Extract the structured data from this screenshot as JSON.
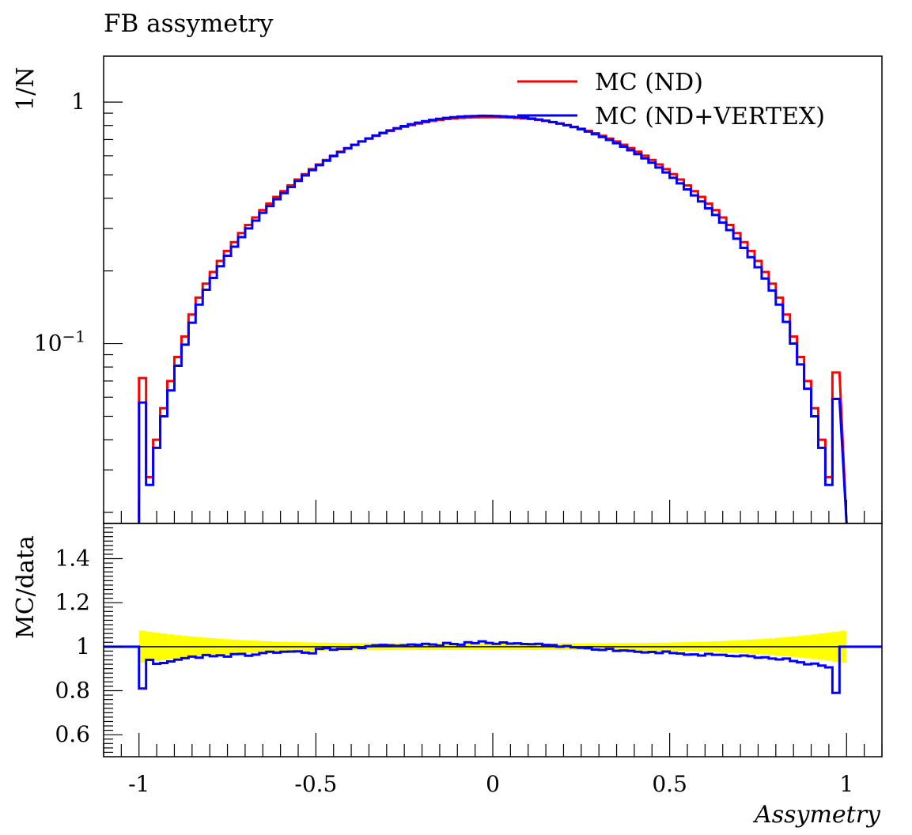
{
  "chart_data": [
    {
      "type": "line",
      "title": "FB assymetry",
      "ylabel": "1/N",
      "yscale": "log",
      "ylim": [
        0.018,
        1.55
      ],
      "xlim": [
        -1.1,
        1.1
      ],
      "ytick_labels": [
        "1",
        "10^{-1}"
      ],
      "legend_position": "top-right",
      "legend": [
        "MC (ND)",
        "MC (ND+VERTEX)"
      ],
      "bins": {
        "start": -1.0,
        "end": 1.0,
        "count": 100
      },
      "series": [
        {
          "name": "MC (ND)",
          "color": "#ff0000",
          "values": [
            0.072,
            0.028,
            0.04,
            0.054,
            0.07,
            0.088,
            0.107,
            0.132,
            0.155,
            0.177,
            0.198,
            0.22,
            0.242,
            0.263,
            0.287,
            0.31,
            0.333,
            0.357,
            0.38,
            0.405,
            0.428,
            0.452,
            0.478,
            0.503,
            0.528,
            0.552,
            0.576,
            0.6,
            0.623,
            0.645,
            0.666,
            0.687,
            0.706,
            0.725,
            0.743,
            0.76,
            0.776,
            0.79,
            0.803,
            0.815,
            0.826,
            0.836,
            0.844,
            0.851,
            0.856,
            0.86,
            0.863,
            0.865,
            0.866,
            0.866,
            0.866,
            0.865,
            0.863,
            0.86,
            0.856,
            0.851,
            0.844,
            0.836,
            0.826,
            0.815,
            0.803,
            0.79,
            0.776,
            0.76,
            0.743,
            0.725,
            0.706,
            0.687,
            0.666,
            0.645,
            0.623,
            0.6,
            0.576,
            0.552,
            0.528,
            0.503,
            0.478,
            0.452,
            0.428,
            0.405,
            0.38,
            0.357,
            0.333,
            0.31,
            0.287,
            0.263,
            0.242,
            0.22,
            0.198,
            0.177,
            0.155,
            0.132,
            0.107,
            0.088,
            0.07,
            0.054,
            0.04,
            0.028,
            0.076
          ]
        },
        {
          "name": "MC (ND+VERTEX)",
          "color": "#0000ff",
          "values": [
            0.057,
            0.026,
            0.037,
            0.05,
            0.064,
            0.081,
            0.099,
            0.122,
            0.145,
            0.167,
            0.187,
            0.209,
            0.231,
            0.252,
            0.276,
            0.3,
            0.323,
            0.348,
            0.371,
            0.396,
            0.42,
            0.445,
            0.472,
            0.497,
            0.523,
            0.548,
            0.572,
            0.597,
            0.621,
            0.643,
            0.665,
            0.687,
            0.707,
            0.727,
            0.746,
            0.764,
            0.78,
            0.795,
            0.81,
            0.822,
            0.834,
            0.844,
            0.853,
            0.86,
            0.866,
            0.871,
            0.874,
            0.876,
            0.878,
            0.877,
            0.876,
            0.873,
            0.87,
            0.866,
            0.861,
            0.855,
            0.847,
            0.838,
            0.827,
            0.815,
            0.802,
            0.788,
            0.772,
            0.755,
            0.736,
            0.717,
            0.697,
            0.676,
            0.654,
            0.632,
            0.609,
            0.585,
            0.561,
            0.536,
            0.511,
            0.486,
            0.461,
            0.435,
            0.411,
            0.388,
            0.363,
            0.341,
            0.317,
            0.295,
            0.272,
            0.249,
            0.228,
            0.207,
            0.186,
            0.166,
            0.145,
            0.123,
            0.1,
            0.082,
            0.065,
            0.05,
            0.037,
            0.026,
            0.059
          ]
        }
      ]
    },
    {
      "type": "line",
      "ylabel": "MC/data",
      "xlabel": "Assymetry",
      "xlim": [
        -1.1,
        1.1
      ],
      "ylim": [
        0.5,
        1.56
      ],
      "yticks": [
        0.6,
        0.8,
        1.0,
        1.2,
        1.4
      ],
      "ytick_labels": [
        "0.6",
        "0.8",
        "1",
        "1.2",
        "1.4"
      ],
      "xtick_labels": [
        "-1",
        "-0.5",
        "0",
        "0.5",
        "1"
      ],
      "reference_line": 1.0,
      "uncertainty_band": {
        "color": "#ffff00",
        "center": 1.0,
        "half_width_edge": 0.075,
        "half_width_center": 0.015
      },
      "series": [
        {
          "name": "",
          "color": "#0000ff",
          "values": [
            0.81,
            0.94,
            0.922,
            0.926,
            0.933,
            0.941,
            0.948,
            0.955,
            0.95,
            0.962,
            0.957,
            0.961,
            0.955,
            0.966,
            0.967,
            0.959,
            0.964,
            0.971,
            0.977,
            0.973,
            0.977,
            0.978,
            0.979,
            0.973,
            0.97,
            0.99,
            0.993,
            0.986,
            0.99,
            0.99,
            0.998,
            0.994,
            1.002,
            1.006,
            1.008,
            1.006,
            1.004,
            1.006,
            1.01,
            1.008,
            1.013,
            1.01,
            1.005,
            1.017,
            1.012,
            1.009,
            1.02,
            1.016,
            1.024,
            1.017,
            1.013,
            1.019,
            1.014,
            1.015,
            1.012,
            1.011,
            1.013,
            1.008,
            1.007,
            1.0,
            1.003,
            0.997,
            0.995,
            0.993,
            0.987,
            0.985,
            0.99,
            0.981,
            0.983,
            0.981,
            0.977,
            0.974,
            0.976,
            0.971,
            0.978,
            0.971,
            0.969,
            0.964,
            0.965,
            0.96,
            0.967,
            0.963,
            0.963,
            0.958,
            0.957,
            0.96,
            0.957,
            0.95,
            0.952,
            0.946,
            0.942,
            0.946,
            0.935,
            0.929,
            0.92,
            0.923,
            0.914,
            0.906,
            0.79
          ]
        }
      ]
    }
  ]
}
